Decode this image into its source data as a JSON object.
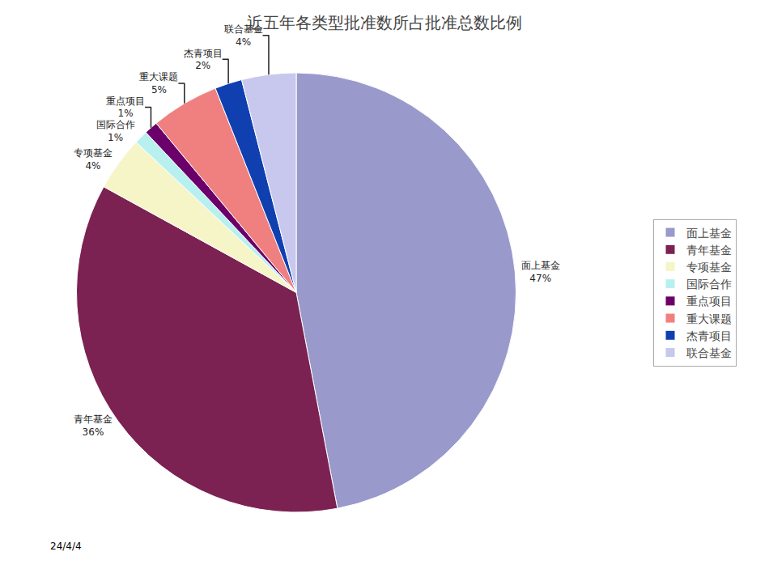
{
  "chart_data": {
    "type": "pie",
    "title": "近五年各类型批准数所占批准总数比例",
    "categories": [
      "面上基金",
      "青年基金",
      "专项基金",
      "国际合作",
      "重点项目",
      "重大课题",
      "杰青项目",
      "联合基金"
    ],
    "values": [
      47,
      36,
      4,
      1,
      1,
      5,
      2,
      4
    ],
    "value_labels": [
      "47%",
      "36%",
      "4%",
      "1%",
      "1%",
      "5%",
      "2%",
      "4%"
    ],
    "colors": [
      "#9999cc",
      "#7b2252",
      "#f5f5c8",
      "#b8f0f0",
      "#6b006b",
      "#f08080",
      "#1040b0",
      "#c8c8ee"
    ],
    "legend": "right",
    "annotations": [
      "24/4/4"
    ]
  }
}
